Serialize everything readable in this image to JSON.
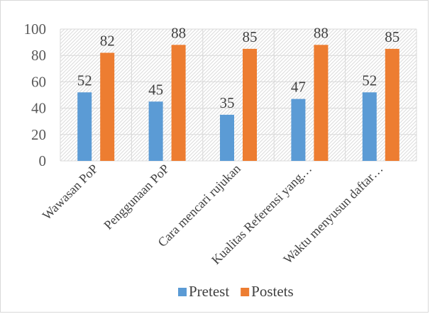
{
  "chart_data": {
    "type": "bar",
    "categories": [
      "Wawasan PoP",
      "Penggunaan PoP",
      "Cara mencari rujukan",
      "Kualitas Referensi yang…",
      "Waktu menyusun daftar…"
    ],
    "series": [
      {
        "name": "Pretest",
        "values": [
          52,
          45,
          35,
          47,
          52
        ],
        "color": "#5b9bd5"
      },
      {
        "name": "Postets",
        "values": [
          82,
          88,
          85,
          88,
          85
        ],
        "color": "#ed7d31"
      }
    ],
    "ylim": [
      0,
      100
    ],
    "yticks": [
      0,
      20,
      40,
      60,
      80,
      100
    ],
    "grid": true,
    "plot_background": "hatched",
    "legend_position": "bottom"
  }
}
